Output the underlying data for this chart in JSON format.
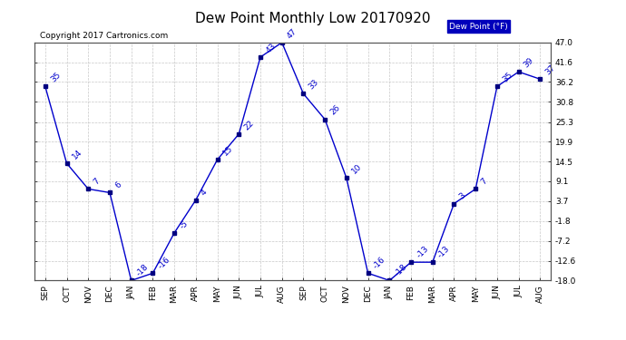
{
  "title": "Dew Point Monthly Low 20170920",
  "copyright": "Copyright 2017 Cartronics.com",
  "legend_label": "Dew Point (°F)",
  "x_labels": [
    "SEP",
    "OCT",
    "NOV",
    "DEC",
    "JAN",
    "FEB",
    "MAR",
    "APR",
    "MAY",
    "JUN",
    "JUL",
    "AUG",
    "SEP",
    "OCT",
    "NOV",
    "DEC",
    "JAN",
    "FEB",
    "MAR",
    "APR",
    "MAY",
    "JUN",
    "JUL",
    "AUG"
  ],
  "values": [
    35,
    14,
    7,
    6,
    -18,
    -16,
    -5,
    4,
    15,
    22,
    43,
    47,
    33,
    26,
    10,
    -16,
    -18,
    -13,
    -13,
    3,
    7,
    35,
    39,
    37
  ],
  "y_ticks": [
    47.0,
    41.6,
    36.2,
    30.8,
    25.3,
    19.9,
    14.5,
    9.1,
    3.7,
    -1.8,
    -7.2,
    -12.6,
    -18.0
  ],
  "y_min": -18.0,
  "y_max": 47.0,
  "line_color": "#0000cc",
  "marker_color": "#000080",
  "text_color": "#0000cc",
  "bg_color": "#ffffff",
  "grid_color": "#c8c8c8",
  "legend_bg": "#0000bb",
  "legend_text": "#ffffff",
  "title_fontsize": 11,
  "tick_fontsize": 6.5,
  "label_fontsize": 6.5,
  "copyright_fontsize": 6.5
}
